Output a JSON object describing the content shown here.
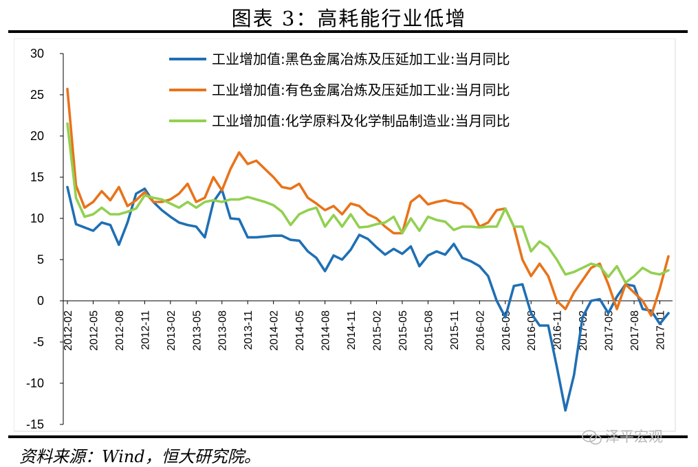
{
  "title": "图表 3：高耗能行业低增",
  "source": "资料来源：Wind，恒大研究院。",
  "watermark": "泽平宏观",
  "chart_data": {
    "type": "line",
    "ylim": [
      -15,
      30
    ],
    "yticks": [
      -15,
      -10,
      -5,
      0,
      5,
      10,
      15,
      20,
      25,
      30
    ],
    "xtick_labels": [
      "2012-02",
      "2012-05",
      "2012-08",
      "2012-11",
      "2013-02",
      "2013-05",
      "2013-08",
      "2013-11",
      "2014-02",
      "2014-05",
      "2014-08",
      "2014-11",
      "2015-02",
      "2015-05",
      "2015-08",
      "2015-11",
      "2016-02",
      "2016-05",
      "2016-08",
      "2016-11",
      "2017-02",
      "2017-05",
      "2017-08",
      "2017-11"
    ],
    "x": [
      "2012-02",
      "2012-03",
      "2012-04",
      "2012-05",
      "2012-06",
      "2012-07",
      "2012-08",
      "2012-09",
      "2012-10",
      "2012-11",
      "2012-12",
      "2013-01",
      "2013-02",
      "2013-03",
      "2013-04",
      "2013-05",
      "2013-06",
      "2013-07",
      "2013-08",
      "2013-09",
      "2013-10",
      "2013-11",
      "2013-12",
      "2014-01",
      "2014-02",
      "2014-03",
      "2014-04",
      "2014-05",
      "2014-06",
      "2014-07",
      "2014-08",
      "2014-09",
      "2014-10",
      "2014-11",
      "2014-12",
      "2015-01",
      "2015-02",
      "2015-03",
      "2015-04",
      "2015-05",
      "2015-06",
      "2015-07",
      "2015-08",
      "2015-09",
      "2015-10",
      "2015-11",
      "2015-12",
      "2016-01",
      "2016-02",
      "2016-03",
      "2016-04",
      "2016-05",
      "2016-06",
      "2016-07",
      "2016-08",
      "2016-09",
      "2016-10",
      "2016-11",
      "2016-12",
      "2017-01",
      "2017-02",
      "2017-03",
      "2017-04",
      "2017-05",
      "2017-06",
      "2017-07",
      "2017-08",
      "2017-09",
      "2017-10",
      "2017-11",
      "2017-12"
    ],
    "legend_position": "top-right",
    "grid": false,
    "series": [
      {
        "name": "工业增加值:黑色金属冶炼及压延加工业:当月同比",
        "color": "#1F6FB4",
        "values": [
          13.8,
          9.3,
          8.9,
          8.5,
          9.5,
          9.2,
          6.8,
          9.5,
          13.0,
          13.6,
          12.0,
          11.0,
          10.2,
          9.5,
          9.2,
          9.0,
          7.7,
          12.0,
          13.5,
          10.0,
          9.9,
          7.7,
          7.7,
          7.8,
          7.9,
          7.9,
          7.4,
          7.3,
          6.0,
          5.2,
          3.6,
          5.5,
          5.0,
          6.2,
          8.0,
          7.5,
          6.5,
          5.6,
          6.3,
          5.7,
          6.6,
          4.2,
          5.5,
          6.0,
          5.6,
          6.9,
          5.2,
          4.8,
          4.2,
          3.0,
          0.0,
          -2.0,
          1.8,
          2.0,
          -1.5,
          -3.0,
          -3.0,
          -8.0,
          -13.3,
          -9.0,
          -2.0,
          0.0,
          0.2,
          -1.5,
          0.5,
          2.0,
          1.8,
          -1.0,
          -1.2,
          -2.8,
          -1.5
        ]
      },
      {
        "name": "工业增加值:有色金属冶炼及压延加工业:当月同比",
        "color": "#E8731A",
        "values": [
          25.7,
          14.0,
          11.3,
          12.0,
          13.3,
          12.2,
          13.8,
          11.5,
          12.2,
          13.2,
          12.0,
          12.0,
          12.3,
          13.0,
          14.2,
          12.0,
          12.5,
          15.0,
          13.4,
          16.0,
          18.0,
          16.6,
          17.0,
          16.0,
          15.0,
          13.8,
          13.6,
          14.2,
          12.5,
          11.8,
          11.0,
          11.5,
          10.5,
          11.8,
          11.5,
          10.5,
          10.0,
          9.0,
          8.2,
          8.2,
          12.0,
          12.8,
          11.7,
          12.0,
          12.2,
          11.9,
          11.8,
          11.0,
          9.0,
          9.5,
          11.0,
          11.2,
          9.0,
          5.0,
          3.0,
          4.5,
          3.0,
          0.0,
          -1.0,
          1.0,
          2.5,
          4.0,
          4.5,
          2.0,
          -1.0,
          2.0,
          1.0,
          0.0,
          -1.8,
          1.5,
          5.4
        ]
      },
      {
        "name": "工业增加值:化学原料及化学制品制造业:当月同比",
        "color": "#92D050",
        "values": [
          21.5,
          12.5,
          10.2,
          10.5,
          11.3,
          10.5,
          10.5,
          10.8,
          11.2,
          12.8,
          12.5,
          12.3,
          11.8,
          11.3,
          12.0,
          11.3,
          12.0,
          12.2,
          12.0,
          12.3,
          12.3,
          12.6,
          12.3,
          12.0,
          11.6,
          10.8,
          9.2,
          10.5,
          11.0,
          11.3,
          9.0,
          10.4,
          9.0,
          10.5,
          8.9,
          9.0,
          9.3,
          9.5,
          10.2,
          8.2,
          10.0,
          8.5,
          10.2,
          9.8,
          9.6,
          8.6,
          9.0,
          9.0,
          8.9,
          9.0,
          9.0,
          11.2,
          9.0,
          9.0,
          6.0,
          7.2,
          6.5,
          5.0,
          3.2,
          3.5,
          4.0,
          4.5,
          4.2,
          2.9,
          4.2,
          2.2,
          3.0,
          4.0,
          3.4,
          3.2,
          3.7
        ]
      }
    ]
  }
}
